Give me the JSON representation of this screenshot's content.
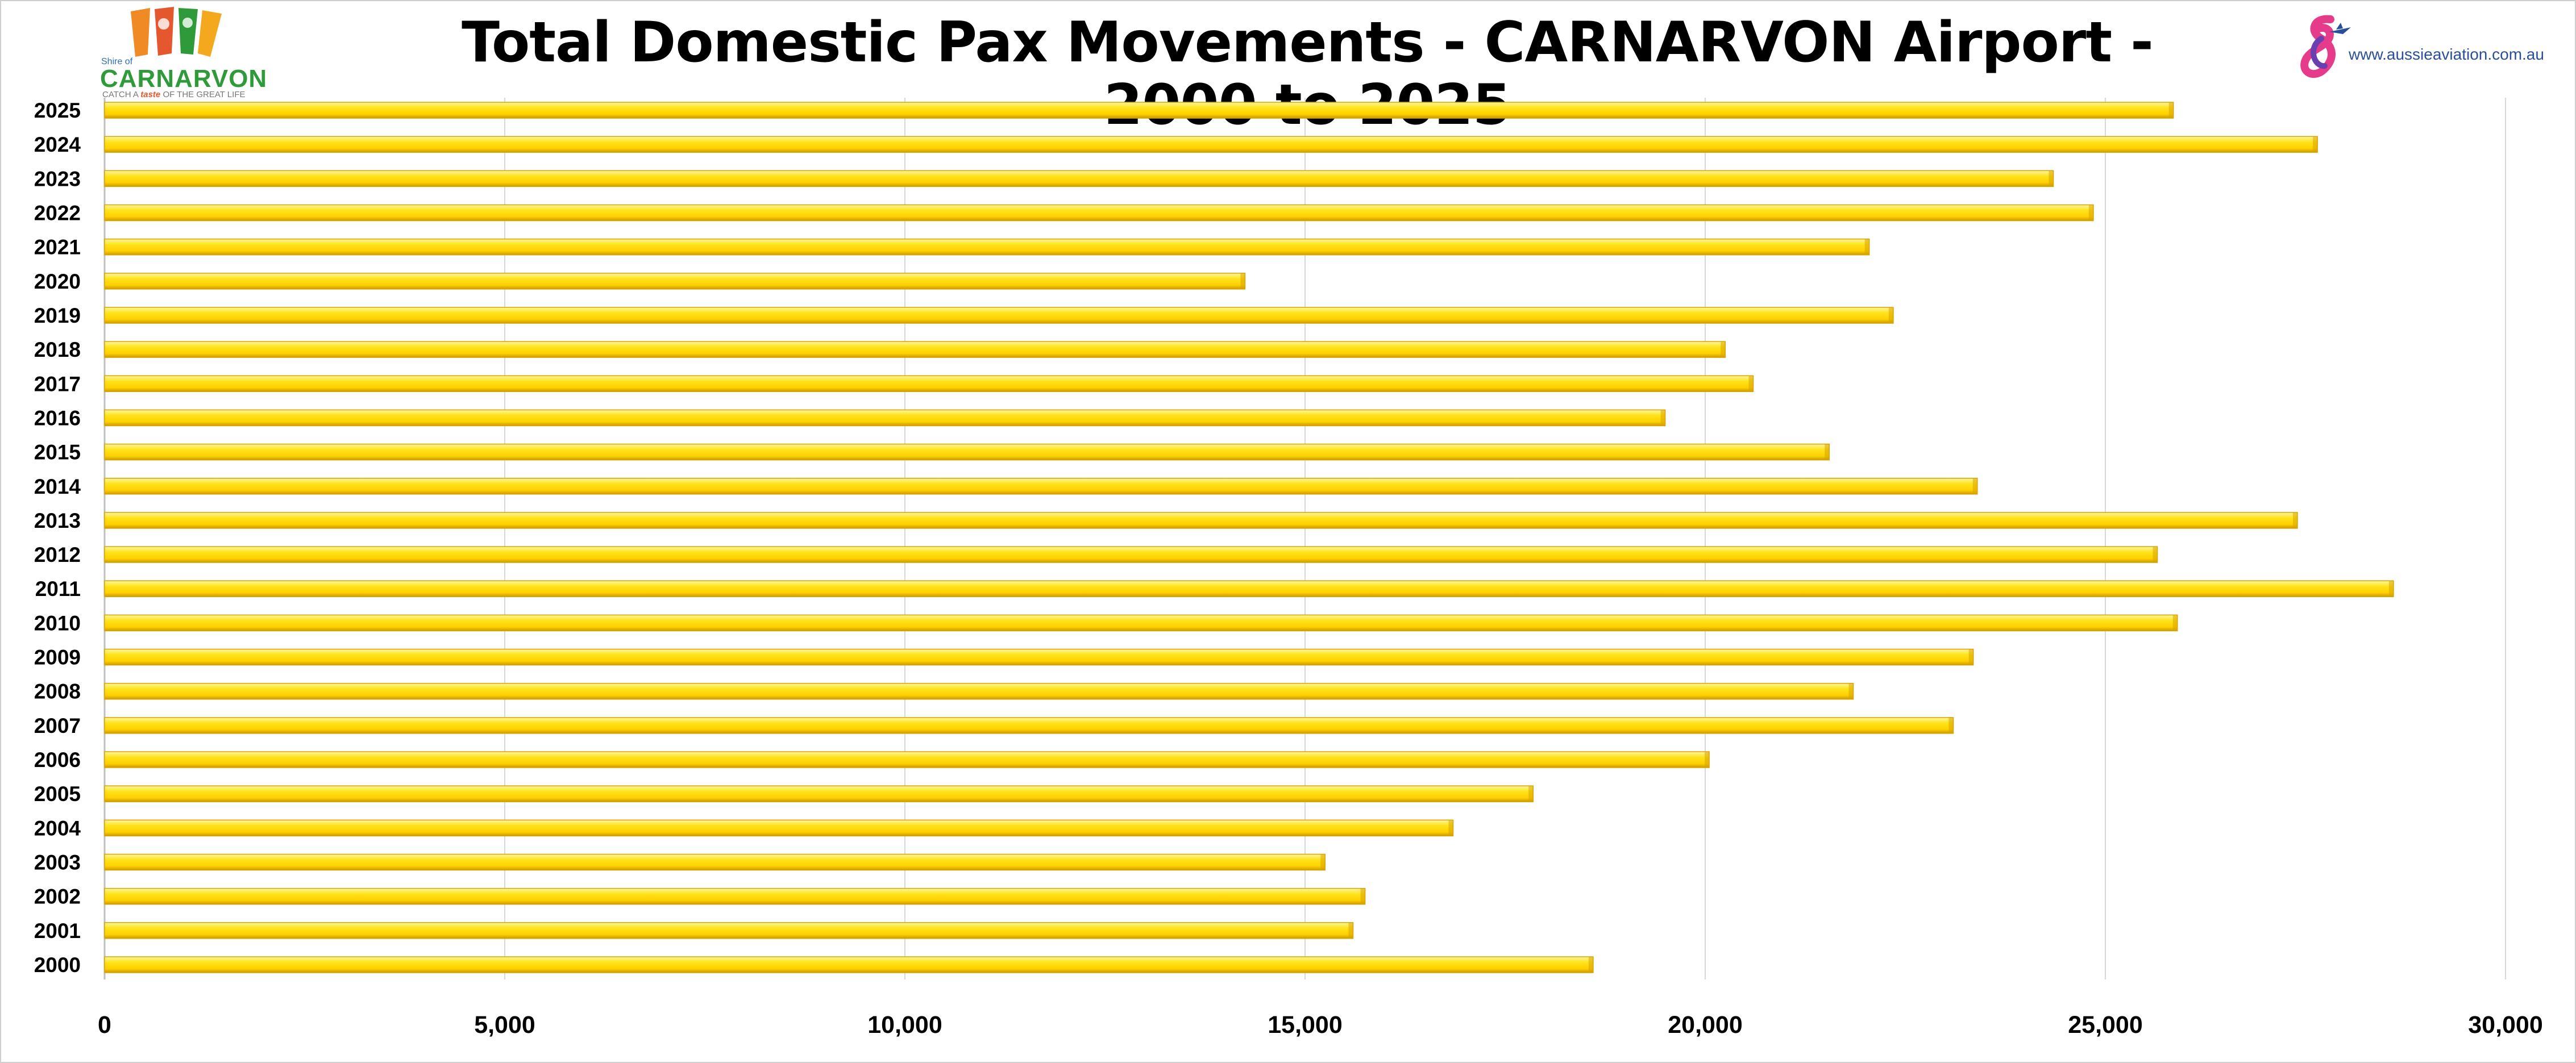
{
  "header": {
    "title": "Total Domestic Pax Movements - CARNARVON Airport - 2000 to 2025"
  },
  "logo_left": {
    "shire_text": "Shire of",
    "name": "CARNARVON",
    "tagline_pre": "CATCH A",
    "tagline_highlight": "taste",
    "tagline_post": "OF THE GREAT LIFE",
    "icon": "carnarvon-shire-logo"
  },
  "logo_right": {
    "url": "www.aussieaviation.com.au",
    "icon": "aussie-aviation-logo"
  },
  "colors": {
    "bar": "#ffd400",
    "bar_highlight": "#fff27a",
    "bar_shadow": "#d9a400",
    "grid": "#d9d9d9",
    "axis": "#bfbfbf"
  },
  "chart_data": {
    "type": "bar",
    "orientation": "horizontal",
    "title": "Total Domestic Pax Movements - CARNARVON Airport - 2000 to 2025",
    "xlabel": "",
    "ylabel": "",
    "xlim": [
      0,
      30000
    ],
    "x_ticks": [
      0,
      5000,
      10000,
      15000,
      20000,
      25000,
      30000
    ],
    "x_tick_labels": [
      "0",
      "5,000",
      "10,000",
      "15,000",
      "20,000",
      "25,000",
      "30,000"
    ],
    "grid": "vertical",
    "legend": "none",
    "categories": [
      "2000",
      "2001",
      "2002",
      "2003",
      "2004",
      "2005",
      "2006",
      "2007",
      "2008",
      "2009",
      "2010",
      "2011",
      "2012",
      "2013",
      "2014",
      "2015",
      "2016",
      "2017",
      "2018",
      "2019",
      "2020",
      "2021",
      "2022",
      "2023",
      "2024",
      "2025"
    ],
    "values": [
      18600,
      15600,
      15750,
      15250,
      16850,
      17850,
      20050,
      23100,
      21850,
      23350,
      25900,
      28600,
      25650,
      27400,
      23400,
      21550,
      19500,
      20600,
      20250,
      22350,
      14250,
      22050,
      24850,
      24350,
      27650,
      25850
    ]
  }
}
